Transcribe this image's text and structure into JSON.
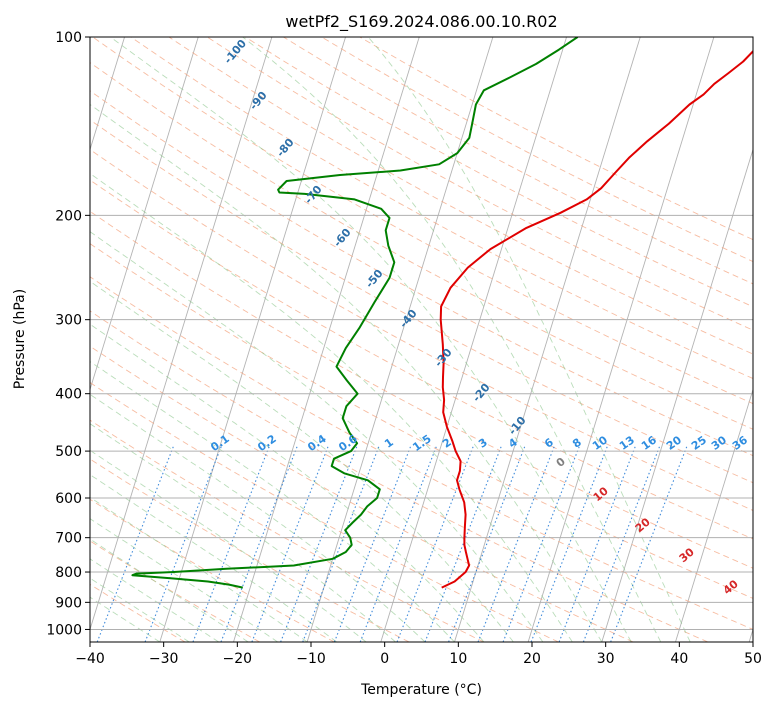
{
  "chart_data": {
    "type": "line",
    "title": "wetPf2_S169.2024.086.00.10.R02",
    "xlabel": "Temperature (°C)",
    "ylabel": "Pressure (hPa)",
    "xlim": [
      -40,
      50
    ],
    "ylim": [
      1050,
      100
    ],
    "y_scale": "log",
    "grid": true,
    "x_ticks": [
      -40,
      -30,
      -20,
      -10,
      0,
      10,
      20,
      30,
      40,
      50
    ],
    "y_ticks": [
      100,
      200,
      300,
      400,
      500,
      600,
      700,
      800,
      900,
      1000
    ],
    "series": [
      {
        "color": "#e00000",
        "points": [
          [
            6,
            850
          ],
          [
            7.5,
            830
          ],
          [
            8.6,
            800
          ],
          [
            8.8,
            780
          ],
          [
            8.3,
            760
          ],
          [
            7.8,
            740
          ],
          [
            7.3,
            720
          ],
          [
            7,
            700
          ],
          [
            6.6,
            670
          ],
          [
            6.2,
            640
          ],
          [
            5.5,
            610
          ],
          [
            4.3,
            580
          ],
          [
            3.6,
            560
          ],
          [
            3.6,
            540
          ],
          [
            3.3,
            520
          ],
          [
            2.2,
            500
          ],
          [
            1.3,
            480
          ],
          [
            0,
            455
          ],
          [
            -1.1,
            430
          ],
          [
            -1.5,
            410
          ],
          [
            -2.2,
            390
          ],
          [
            -2.6,
            375
          ],
          [
            -3.1,
            355
          ],
          [
            -4,
            330
          ],
          [
            -5.3,
            300
          ],
          [
            -5.8,
            285
          ],
          [
            -5.3,
            265
          ],
          [
            -3.8,
            245
          ],
          [
            -1.5,
            228
          ],
          [
            2.5,
            210
          ],
          [
            6.5,
            198
          ],
          [
            9.5,
            188
          ],
          [
            11,
            180
          ],
          [
            12.2,
            170
          ],
          [
            13.5,
            160
          ],
          [
            15.3,
            150
          ],
          [
            17.5,
            140
          ],
          [
            19.5,
            130
          ],
          [
            21,
            125
          ],
          [
            22,
            120
          ],
          [
            23.5,
            115
          ],
          [
            25,
            110
          ],
          [
            26.5,
            103
          ],
          [
            27.5,
            100
          ]
        ]
      },
      {
        "color": "#008000",
        "points": [
          [
            -21,
            850
          ],
          [
            -23,
            840
          ],
          [
            -26,
            830
          ],
          [
            -31,
            820
          ],
          [
            -36.5,
            810
          ],
          [
            -36,
            805
          ],
          [
            -31,
            800
          ],
          [
            -24,
            790
          ],
          [
            -15,
            780
          ],
          [
            -10,
            760
          ],
          [
            -8.5,
            740
          ],
          [
            -8,
            720
          ],
          [
            -8.5,
            700
          ],
          [
            -9.5,
            680
          ],
          [
            -8.8,
            660
          ],
          [
            -8,
            640
          ],
          [
            -7.5,
            620
          ],
          [
            -6.5,
            600
          ],
          [
            -6.5,
            580
          ],
          [
            -8.5,
            560
          ],
          [
            -12,
            545
          ],
          [
            -14,
            530
          ],
          [
            -14,
            515
          ],
          [
            -12,
            500
          ],
          [
            -11.5,
            485
          ],
          [
            -13,
            465
          ],
          [
            -14.5,
            440
          ],
          [
            -14.5,
            420
          ],
          [
            -13.5,
            400
          ],
          [
            -15.5,
            380
          ],
          [
            -17.5,
            360
          ],
          [
            -17,
            335
          ],
          [
            -16,
            310
          ],
          [
            -15,
            280
          ],
          [
            -14,
            255
          ],
          [
            -14,
            240
          ],
          [
            -15.5,
            225
          ],
          [
            -16.5,
            212
          ],
          [
            -16.5,
            202
          ],
          [
            -18,
            195
          ],
          [
            -22,
            188
          ],
          [
            -29,
            184
          ],
          [
            -32.5,
            183
          ],
          [
            -32.8,
            181
          ],
          [
            -32,
            175
          ],
          [
            -25,
            171
          ],
          [
            -17,
            168
          ],
          [
            -12,
            164
          ],
          [
            -10,
            157
          ],
          [
            -9,
            148
          ],
          [
            -9.2,
            140
          ],
          [
            -9.5,
            130
          ],
          [
            -9,
            123
          ],
          [
            -6,
            117
          ],
          [
            -3,
            111
          ],
          [
            -0.5,
            105
          ],
          [
            1.5,
            100
          ]
        ]
      }
    ],
    "mixing_ratio_labels": [
      "0.1",
      "0.2",
      "0.4",
      "0.6",
      "1",
      "1.5",
      "2",
      "3",
      "4",
      "6",
      "8",
      "10",
      "13",
      "16",
      "20",
      "25",
      "30",
      "36"
    ],
    "moist_adiabat_labels": [
      "-100",
      "-90",
      "-80",
      "-70",
      "-60",
      "-50",
      "-40",
      "-30",
      "-20",
      "-10"
    ],
    "dry_adiabat_labels": [
      "0",
      "10",
      "20",
      "30",
      "40"
    ]
  }
}
